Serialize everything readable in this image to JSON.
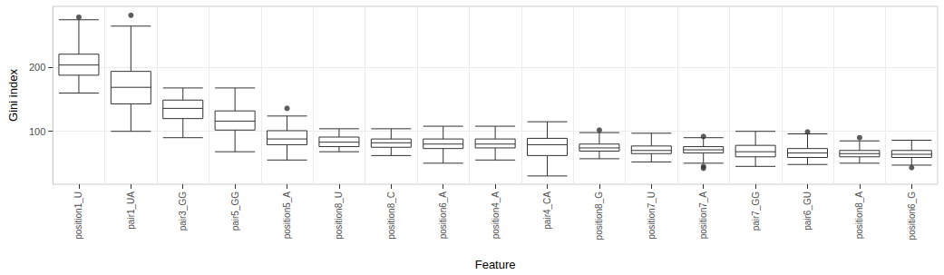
{
  "chart_data": {
    "type": "boxplot",
    "x_label": "Feature",
    "y_label": "Gini index",
    "categories": [
      "position1_U",
      "pair1_UA",
      "pair3_GG",
      "pair5_GG",
      "position5_A",
      "position8_U",
      "position8_C",
      "position6_A",
      "position4_A",
      "pair4_CA",
      "position8_G",
      "position7_U",
      "position7_A",
      "pair7_GG",
      "pair6_GU",
      "position8_A",
      "position6_G"
    ],
    "boxes": [
      [
        160,
        188,
        204,
        221,
        275
      ],
      [
        100,
        143,
        169,
        194,
        265
      ],
      [
        90,
        120,
        136,
        149,
        168
      ],
      [
        68,
        102,
        116,
        132,
        168
      ],
      [
        55,
        79,
        88,
        101,
        124
      ],
      [
        68,
        76,
        83,
        91,
        104
      ],
      [
        62,
        75,
        82,
        88,
        104
      ],
      [
        50,
        73,
        80,
        88,
        108
      ],
      [
        55,
        74,
        80,
        88,
        108
      ],
      [
        30,
        62,
        79,
        89,
        115
      ],
      [
        57,
        69,
        74,
        80,
        98
      ],
      [
        52,
        65,
        70,
        77,
        97
      ],
      [
        50,
        66,
        71,
        76,
        90
      ],
      [
        45,
        60,
        68,
        78,
        100
      ],
      [
        48,
        59,
        66,
        73,
        96
      ],
      [
        50,
        60,
        65,
        70,
        85
      ],
      [
        47,
        59,
        64,
        70,
        86
      ]
    ],
    "outliers": [
      [
        279
      ],
      [
        282
      ],
      [],
      [],
      [
        136
      ],
      [],
      [],
      [],
      [],
      [],
      [
        102
      ],
      [],
      [
        92,
        45,
        42
      ],
      [],
      [
        99
      ],
      [
        90
      ],
      [
        43
      ]
    ],
    "color": "#333333",
    "ylim": [
      17,
      296
    ],
    "yticks": [
      100,
      200
    ],
    "grid": true
  }
}
